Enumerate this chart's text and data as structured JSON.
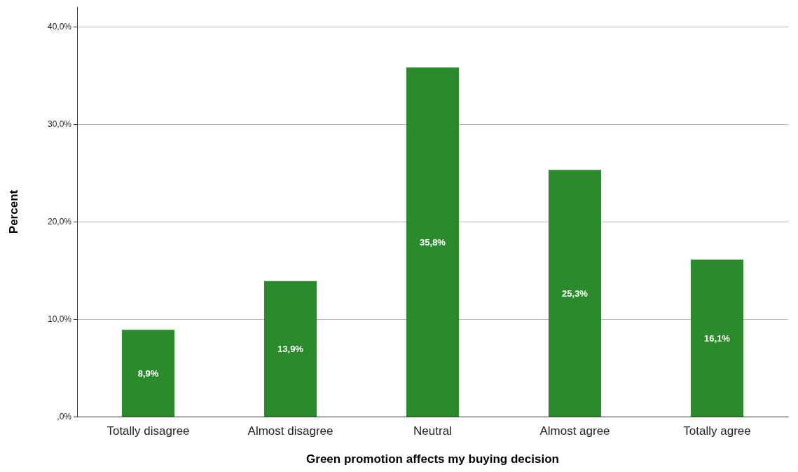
{
  "chart_data": {
    "type": "bar",
    "xlabel": "Green promotion affects my buying decision",
    "ylabel": "Percent",
    "categories": [
      "Totally disagree",
      "Almost disagree",
      "Neutral",
      "Almost agree",
      "Totally agree"
    ],
    "values": [
      8.9,
      13.9,
      35.8,
      25.3,
      16.1
    ],
    "value_labels": [
      "8,9%",
      "13,9%",
      "35,8%",
      "25,3%",
      "16,1%"
    ],
    "color": "#2b8a2b",
    "ylim": [
      0,
      42
    ],
    "yticks": [
      {
        "value": 0,
        "label": ",0%"
      },
      {
        "value": 10,
        "label": "10,0%"
      },
      {
        "value": 20,
        "label": "20,0%"
      },
      {
        "value": 30,
        "label": "30,0%"
      },
      {
        "value": 40,
        "label": "40,0%"
      }
    ],
    "grid": "y"
  }
}
